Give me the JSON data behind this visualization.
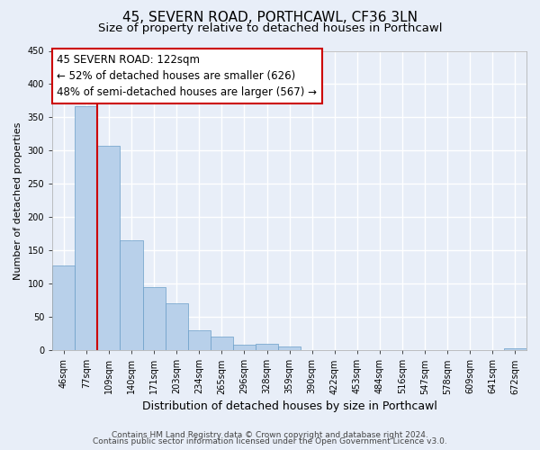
{
  "title": "45, SEVERN ROAD, PORTHCAWL, CF36 3LN",
  "subtitle": "Size of property relative to detached houses in Porthcawl",
  "xlabel": "Distribution of detached houses by size in Porthcawl",
  "ylabel": "Number of detached properties",
  "bin_labels": [
    "46sqm",
    "77sqm",
    "109sqm",
    "140sqm",
    "171sqm",
    "203sqm",
    "234sqm",
    "265sqm",
    "296sqm",
    "328sqm",
    "359sqm",
    "390sqm",
    "422sqm",
    "453sqm",
    "484sqm",
    "516sqm",
    "547sqm",
    "578sqm",
    "609sqm",
    "641sqm",
    "672sqm"
  ],
  "bar_values": [
    128,
    367,
    307,
    165,
    95,
    70,
    30,
    20,
    8,
    10,
    5,
    0,
    0,
    0,
    0,
    0,
    0,
    0,
    0,
    0,
    3
  ],
  "bar_color": "#b8d0ea",
  "red_line_color": "#cc0000",
  "red_line_x": 2.0,
  "ylim": [
    0,
    450
  ],
  "yticks": [
    0,
    50,
    100,
    150,
    200,
    250,
    300,
    350,
    400,
    450
  ],
  "annotation_title": "45 SEVERN ROAD: 122sqm",
  "annotation_line1": "← 52% of detached houses are smaller (626)",
  "annotation_line2": "48% of semi-detached houses are larger (567) →",
  "footer_line1": "Contains HM Land Registry data © Crown copyright and database right 2024.",
  "footer_line2": "Contains public sector information licensed under the Open Government Licence v3.0.",
  "background_color": "#e8eef8",
  "plot_bg_color": "#e8eef8",
  "grid_color": "#ffffff",
  "title_fontsize": 11,
  "subtitle_fontsize": 9.5,
  "ylabel_fontsize": 8,
  "xlabel_fontsize": 9,
  "tick_fontsize": 7,
  "footer_fontsize": 6.5,
  "ann_fontsize": 8.5
}
